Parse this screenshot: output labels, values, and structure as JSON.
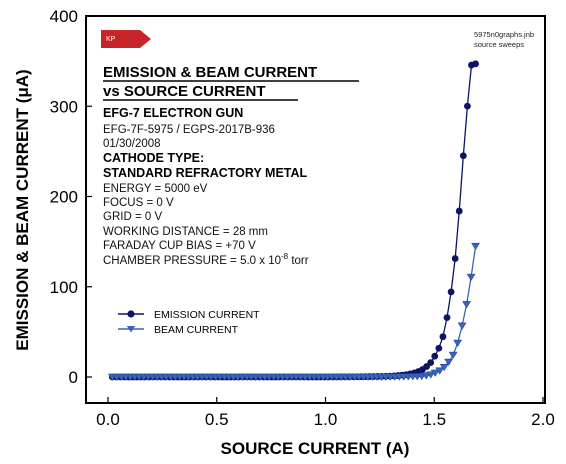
{
  "chart_data": {
    "type": "scatter",
    "xlabel": "SOURCE CURRENT (A)",
    "ylabel": "EMISSION & BEAM CURRENT (μA)",
    "xlim": [
      0.0,
      2.0
    ],
    "ylim": [
      0,
      400
    ],
    "xticks": [
      "0.0",
      "0.5",
      "1.0",
      "1.5",
      "2.0"
    ],
    "yticks": [
      "0",
      "100",
      "200",
      "300",
      "400"
    ],
    "grid": false,
    "legend_position": "bottom-left",
    "series": [
      {
        "name": "EMISSION CURRENT",
        "color": "#0d1563",
        "marker": "circle",
        "x": [
          0.02,
          0.2,
          0.4,
          0.6,
          0.8,
          1.0,
          1.2,
          1.3,
          1.35,
          1.4,
          1.45,
          1.5,
          1.55,
          1.6,
          1.62,
          1.64,
          1.66,
          1.67,
          1.68,
          1.69
        ],
        "y": [
          0,
          0,
          0,
          0,
          0,
          0,
          0.5,
          1,
          2,
          4,
          9,
          22,
          55,
          140,
          200,
          265,
          320,
          345,
          347,
          347
        ]
      },
      {
        "name": "BEAM CURRENT",
        "color": "#3a64b8",
        "marker": "triangle-down",
        "x": [
          0.02,
          0.2,
          0.4,
          0.6,
          0.8,
          1.0,
          1.2,
          1.4,
          1.45,
          1.5,
          1.55,
          1.6,
          1.65,
          1.68,
          1.69
        ],
        "y": [
          0,
          0,
          0,
          0,
          0,
          0,
          0,
          0.5,
          1,
          4,
          12,
          32,
          82,
          128,
          145
        ]
      }
    ]
  },
  "annotations": {
    "badge": "KP",
    "file_line1": "5975n0graphs.jnb",
    "file_line2": "source sweeps",
    "title_line1": "EMISSION & BEAM CURRENT",
    "title_line2": "vs SOURCE CURRENT",
    "gun": "EFG-7 ELECTRON GUN",
    "model": "EFG-7F-5975 / EGPS-2017B-936",
    "date": "01/30/2008",
    "cathode_label": "CATHODE TYPE:",
    "cathode_value": "STANDARD REFRACTORY METAL",
    "energy": "ENERGY = 5000 eV",
    "focus": "FOCUS = 0 V",
    "grid": "GRID = 0 V",
    "working_distance": "WORKING DISTANCE = 28 mm",
    "faraday": "FARADAY CUP BIAS = +70 V",
    "pressure_prefix": "CHAMBER PRESSURE = 5.0 x 10",
    "pressure_exp": "-8",
    "pressure_unit": " torr"
  }
}
